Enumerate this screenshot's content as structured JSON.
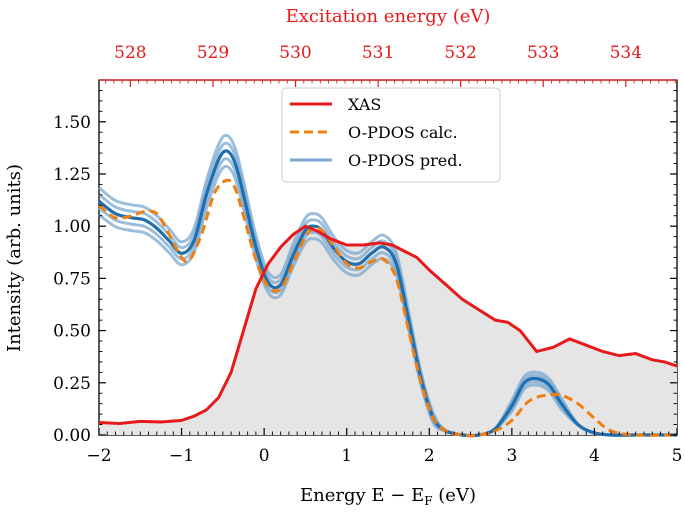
{
  "chart_data": {
    "type": "line",
    "xlabel": "Energy E − E",
    "xlabel_sub": "F",
    "xlabel_unit": " (eV)",
    "ylabel": "Intensity (arb. units)",
    "top_xlabel": "Excitation energy (eV)",
    "xlim": [
      -2,
      5
    ],
    "ylim": [
      0,
      1.7
    ],
    "x_ticks": [
      -2,
      -1,
      0,
      1,
      2,
      3,
      4,
      5
    ],
    "x_tick_labels": [
      "−2",
      "−1",
      "0",
      "1",
      "2",
      "3",
      "4",
      "5"
    ],
    "y_ticks": [
      0,
      0.25,
      0.5,
      0.75,
      1.0,
      1.25,
      1.5
    ],
    "y_tick_labels": [
      "0.00",
      "0.25",
      "0.50",
      "0.75",
      "1.00",
      "1.25",
      "1.50"
    ],
    "top_ticks": [
      528,
      529,
      530,
      531,
      532,
      533,
      534
    ],
    "top_tick_labels": [
      "528",
      "529",
      "530",
      "531",
      "532",
      "533",
      "534"
    ],
    "top_axis_mapping": {
      "energy_at_zero": 529.62,
      "scale": 1.0
    },
    "legend": {
      "position": "upper-center",
      "entries": [
        {
          "label": "XAS",
          "color": "#e8191b",
          "style": "solid"
        },
        {
          "label": "O-PDOS calc.",
          "color": "#f07f12",
          "style": "dashed"
        },
        {
          "label": "O-PDOS pred.",
          "color": "#7aa8d2",
          "style": "solid"
        }
      ]
    },
    "colors": {
      "xas": "#e8191b",
      "calc": "#f07f12",
      "pred_light": "#7aa8d2",
      "pred_dark": "#1f6fae",
      "fill": "#e5e5e5"
    },
    "series": [
      {
        "name": "XAS",
        "x": [
          -2.0,
          -1.75,
          -1.5,
          -1.25,
          -1.0,
          -0.85,
          -0.7,
          -0.55,
          -0.4,
          -0.25,
          -0.1,
          0.05,
          0.2,
          0.35,
          0.5,
          0.65,
          0.8,
          1.0,
          1.2,
          1.4,
          1.55,
          1.7,
          1.85,
          2.0,
          2.2,
          2.4,
          2.6,
          2.8,
          2.95,
          3.1,
          3.3,
          3.5,
          3.7,
          3.9,
          4.1,
          4.3,
          4.5,
          4.7,
          4.85,
          5.0
        ],
        "values": [
          0.06,
          0.055,
          0.065,
          0.062,
          0.07,
          0.09,
          0.12,
          0.18,
          0.3,
          0.5,
          0.7,
          0.82,
          0.9,
          0.96,
          1.0,
          0.975,
          0.94,
          0.91,
          0.91,
          0.92,
          0.91,
          0.88,
          0.85,
          0.79,
          0.72,
          0.65,
          0.6,
          0.55,
          0.54,
          0.5,
          0.4,
          0.42,
          0.46,
          0.43,
          0.4,
          0.38,
          0.39,
          0.36,
          0.35,
          0.33
        ]
      },
      {
        "name": "O-PDOS calc.",
        "x": [
          -2.0,
          -1.8,
          -1.6,
          -1.45,
          -1.3,
          -1.15,
          -1.0,
          -0.9,
          -0.75,
          -0.6,
          -0.45,
          -0.35,
          -0.25,
          -0.1,
          0.05,
          0.2,
          0.35,
          0.5,
          0.6,
          0.7,
          0.85,
          1.0,
          1.15,
          1.3,
          1.45,
          1.6,
          1.75,
          1.9,
          2.05,
          2.2,
          2.4,
          2.6,
          2.8,
          3.0,
          3.2,
          3.4,
          3.6,
          3.8,
          4.0,
          4.2,
          4.5,
          5.0
        ],
        "values": [
          1.1,
          1.04,
          1.05,
          1.07,
          1.06,
          0.96,
          0.85,
          0.84,
          0.97,
          1.16,
          1.22,
          1.18,
          1.05,
          0.84,
          0.71,
          0.7,
          0.82,
          0.95,
          0.99,
          0.98,
          0.9,
          0.82,
          0.8,
          0.83,
          0.84,
          0.75,
          0.5,
          0.25,
          0.08,
          0.02,
          0.0,
          0.0,
          0.02,
          0.07,
          0.16,
          0.19,
          0.19,
          0.15,
          0.08,
          0.02,
          0.0,
          0.0
        ]
      },
      {
        "name": "O-PDOS pred.",
        "x": [
          -2.0,
          -1.8,
          -1.6,
          -1.45,
          -1.3,
          -1.15,
          -1.0,
          -0.85,
          -0.7,
          -0.55,
          -0.45,
          -0.35,
          -0.25,
          -0.1,
          0.05,
          0.2,
          0.35,
          0.5,
          0.6,
          0.7,
          0.85,
          1.0,
          1.15,
          1.3,
          1.45,
          1.6,
          1.75,
          1.9,
          2.05,
          2.2,
          2.4,
          2.6,
          2.8,
          3.0,
          3.15,
          3.3,
          3.45,
          3.6,
          3.8,
          4.0,
          4.2,
          4.5,
          5.0
        ],
        "values": [
          1.12,
          1.06,
          1.04,
          1.03,
          0.99,
          0.93,
          0.87,
          0.93,
          1.15,
          1.32,
          1.36,
          1.3,
          1.15,
          0.9,
          0.73,
          0.72,
          0.86,
          0.98,
          1.0,
          0.98,
          0.89,
          0.83,
          0.82,
          0.87,
          0.9,
          0.82,
          0.55,
          0.27,
          0.08,
          0.02,
          0.0,
          0.0,
          0.03,
          0.14,
          0.25,
          0.27,
          0.24,
          0.15,
          0.05,
          0.01,
          0.0,
          0.0,
          0.0
        ]
      }
    ]
  }
}
